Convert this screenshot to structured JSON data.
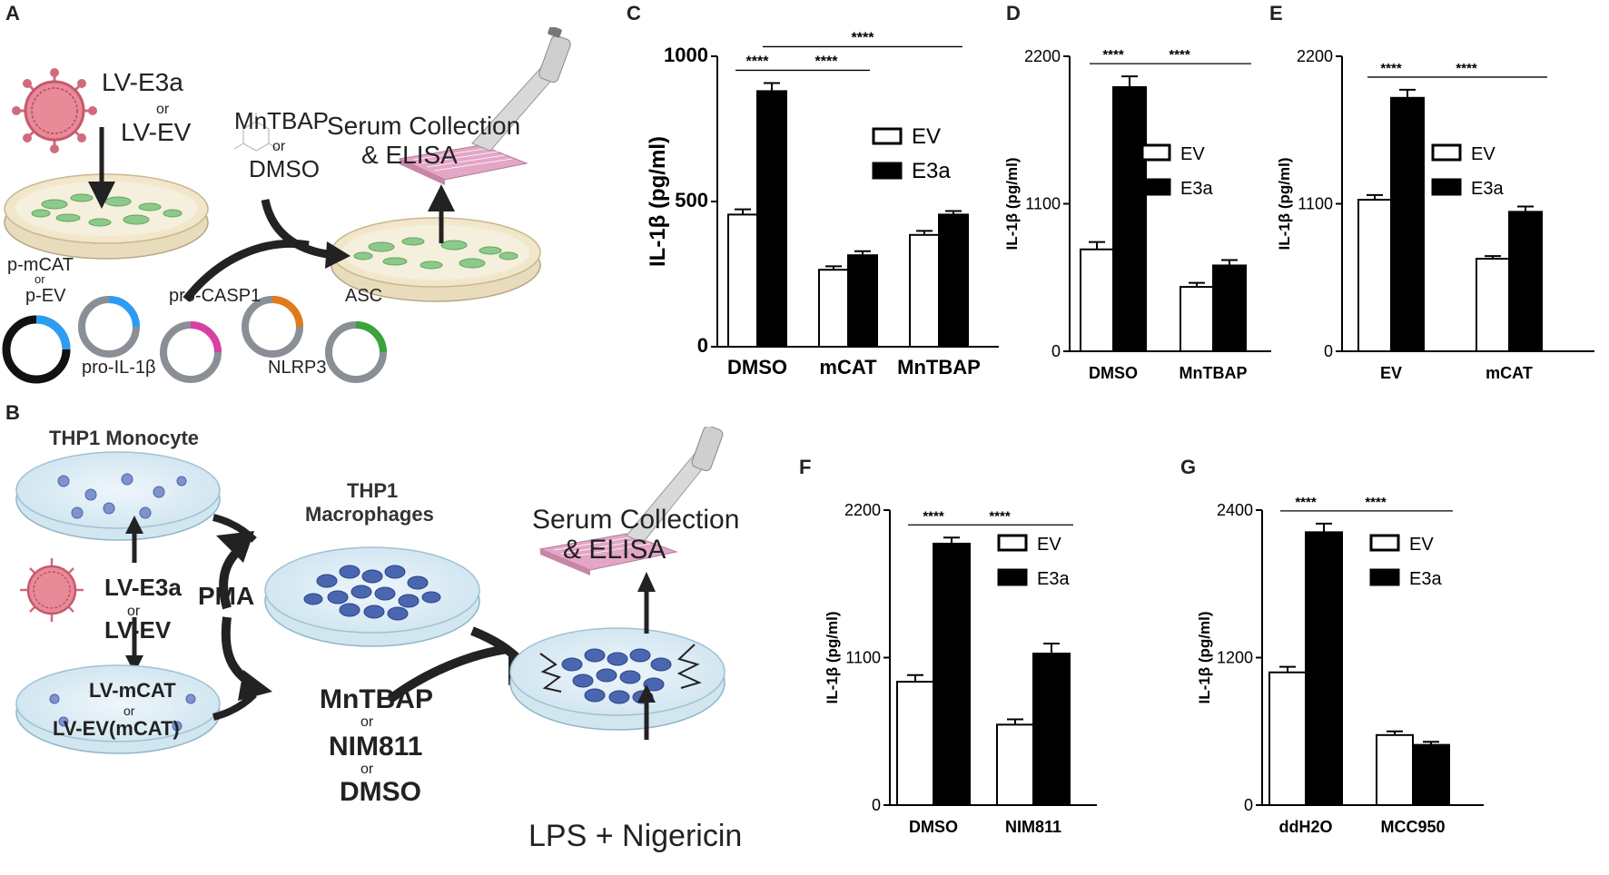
{
  "panels": {
    "A": "A",
    "B": "B",
    "C": "C",
    "D": "D",
    "E": "E",
    "F": "F",
    "G": "G"
  },
  "schematicA": {
    "lv_e3a": "LV-E3a",
    "or1": "or",
    "lv_ev": "LV-EV",
    "mntbap": "MnTBAP",
    "or2": "or",
    "dmso": "DMSO",
    "serum1": "Serum Collection",
    "serum2": "& ELISA",
    "p_mcat": "p-mCAT",
    "or3": "or",
    "p_ev": "p-EV",
    "pro_casp1": "pro-CASP1",
    "asc": "ASC",
    "pro_il1b": "pro-IL-1β",
    "nlrp3": "NLRP3"
  },
  "schematicB": {
    "thp1_monocyte": "THP1 Monocyte",
    "lv_e3a": "LV-E3a",
    "or1": "or",
    "lv_ev": "LV-EV",
    "pma": "PMA",
    "thp1": "THP1",
    "macrophages": "Macrophages",
    "lv_mcat": "LV-mCAT",
    "or2": "or",
    "lv_ev_mcat": "LV-EV(mCAT)",
    "mntbap": "MnTBAP",
    "or3": "or",
    "nim811": "NIM811",
    "or4": "or",
    "dmso": "DMSO",
    "serum1": "Serum Collection",
    "serum2": "& ELISA",
    "lps": "LPS + Nigericin"
  },
  "colors": {
    "ev": "#ffffff",
    "e3a": "#000000",
    "dish": "#f4ecd9",
    "cell": "#8cc98a",
    "thp": "#4a66b0",
    "virus": "#e07a8a"
  },
  "chart_data": [
    {
      "id": "C",
      "type": "bar",
      "ylabel": "IL-1β (pg/ml)",
      "categories": [
        "DMSO",
        "mCAT",
        "MnTBAP"
      ],
      "ylim": [
        0,
        1000
      ],
      "yticks": [
        "0",
        "500",
        "1000"
      ],
      "series": [
        {
          "name": "EV",
          "values": [
            455,
            265,
            385
          ],
          "errors": [
            18,
            12,
            14
          ]
        },
        {
          "name": "E3a",
          "values": [
            880,
            315,
            455
          ],
          "errors": [
            28,
            14,
            12
          ]
        }
      ],
      "sig": [
        "****",
        "****",
        "****"
      ],
      "legend": "top-right"
    },
    {
      "id": "D",
      "type": "bar",
      "ylabel": "IL-1β (pg/ml)",
      "categories": [
        "DMSO",
        "MnTBAP"
      ],
      "ylim": [
        0,
        2200
      ],
      "yticks": [
        "0",
        "1100",
        "2200"
      ],
      "series": [
        {
          "name": "EV",
          "values": [
            760,
            480
          ],
          "errors": [
            55,
            30
          ]
        },
        {
          "name": "E3a",
          "values": [
            1970,
            640
          ],
          "errors": [
            80,
            40
          ]
        }
      ],
      "sig": [
        "****",
        "****"
      ],
      "legend": "top-right"
    },
    {
      "id": "E",
      "type": "bar",
      "ylabel": "IL-1β (pg/ml)",
      "categories": [
        "EV",
        "mCAT"
      ],
      "ylim": [
        0,
        2200
      ],
      "yticks": [
        "0",
        "1100",
        "2200"
      ],
      "series": [
        {
          "name": "EV",
          "values": [
            1130,
            690
          ],
          "errors": [
            35,
            20
          ]
        },
        {
          "name": "E3a",
          "values": [
            1890,
            1040
          ],
          "errors": [
            60,
            40
          ]
        }
      ],
      "sig": [
        "****",
        "****"
      ],
      "legend": "top-right"
    },
    {
      "id": "F",
      "type": "bar",
      "ylabel": "IL-1β (pg/ml)",
      "categories": [
        "DMSO",
        "NIM811"
      ],
      "ylim": [
        0,
        2200
      ],
      "yticks": [
        "0",
        "1100",
        "2200"
      ],
      "series": [
        {
          "name": "EV",
          "values": [
            920,
            600
          ],
          "errors": [
            50,
            40
          ]
        },
        {
          "name": "E3a",
          "values": [
            1950,
            1130
          ],
          "errors": [
            45,
            75
          ]
        }
      ],
      "sig": [
        "****",
        "****"
      ],
      "legend": "top-right"
    },
    {
      "id": "G",
      "type": "bar",
      "ylabel": "IL-1β (pg/ml)",
      "categories": [
        "ddH2O",
        "MCC950"
      ],
      "ylim": [
        0,
        2400
      ],
      "yticks": [
        "0",
        "1200",
        "2400"
      ],
      "series": [
        {
          "name": "EV",
          "values": [
            1080,
            570
          ],
          "errors": [
            45,
            30
          ]
        },
        {
          "name": "E3a",
          "values": [
            2220,
            490
          ],
          "errors": [
            70,
            25
          ]
        }
      ],
      "sig": [
        "****",
        "****"
      ],
      "legend": "top-right"
    }
  ]
}
